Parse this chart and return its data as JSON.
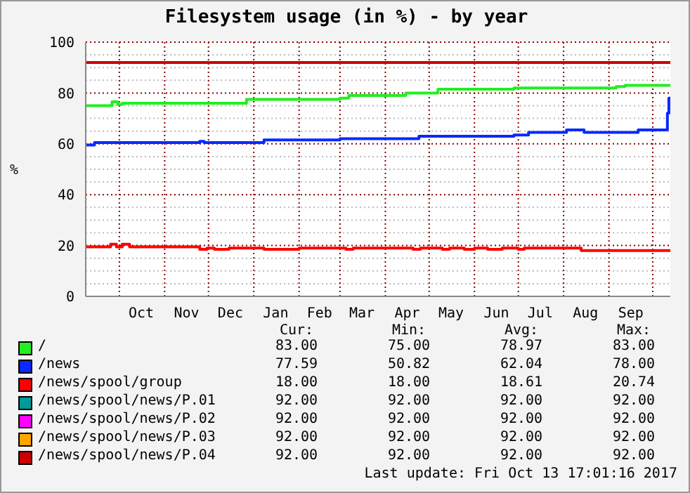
{
  "chart_data": {
    "type": "step",
    "title": "Filesystem usage (in %) - by year",
    "ylabel": "%",
    "x": [
      "2016-09-08",
      "2017-10-13"
    ],
    "xlim": [
      "2016-09-08",
      "2017-10-13"
    ],
    "xticks": [
      {
        "value": "2016-10-01",
        "label": null
      },
      {
        "value": "2016-10-16",
        "label": "Oct"
      },
      {
        "value": "2016-11-01",
        "label": null
      },
      {
        "value": "2016-11-16",
        "label": "Nov"
      },
      {
        "value": "2016-12-01",
        "label": null
      },
      {
        "value": "2016-12-16",
        "label": "Dec"
      },
      {
        "value": "2017-01-01",
        "label": null
      },
      {
        "value": "2017-01-16",
        "label": "Jan"
      },
      {
        "value": "2017-02-01",
        "label": null
      },
      {
        "value": "2017-02-15",
        "label": "Feb"
      },
      {
        "value": "2017-03-01",
        "label": null
      },
      {
        "value": "2017-03-16",
        "label": "Mar"
      },
      {
        "value": "2017-04-01",
        "label": null
      },
      {
        "value": "2017-04-16",
        "label": "Apr"
      },
      {
        "value": "2017-05-01",
        "label": null
      },
      {
        "value": "2017-05-16",
        "label": "May"
      },
      {
        "value": "2017-06-01",
        "label": null
      },
      {
        "value": "2017-06-16",
        "label": "Jun"
      },
      {
        "value": "2017-07-01",
        "label": null
      },
      {
        "value": "2017-07-16",
        "label": "Jul"
      },
      {
        "value": "2017-08-01",
        "label": null
      },
      {
        "value": "2017-08-16",
        "label": "Aug"
      },
      {
        "value": "2017-09-01",
        "label": null
      },
      {
        "value": "2017-09-16",
        "label": "Sep"
      },
      {
        "value": "2017-10-01",
        "label": null
      }
    ],
    "ylim": [
      0,
      100
    ],
    "yticks": [
      0,
      {
        "value": 5,
        "label": null
      },
      {
        "value": 10,
        "label": null
      },
      {
        "value": 15,
        "label": null
      },
      20,
      {
        "value": 25,
        "label": null
      },
      {
        "value": 30,
        "label": null
      },
      {
        "value": 35,
        "label": null
      },
      40,
      {
        "value": 45,
        "label": null
      },
      {
        "value": 50,
        "label": null
      },
      {
        "value": 55,
        "label": null
      },
      60,
      {
        "value": 65,
        "label": null
      },
      {
        "value": 70,
        "label": null
      },
      {
        "value": 75,
        "label": null
      },
      80,
      {
        "value": 85,
        "label": null
      },
      {
        "value": 90,
        "label": null
      },
      {
        "value": 95,
        "label": null
      },
      100
    ],
    "grid": true,
    "legend": "bottom",
    "series": [
      {
        "name": "/",
        "color": "#22ee22",
        "x": [
          "2016-09-08",
          "2016-09-26",
          "2016-09-30",
          "2016-10-03",
          "2016-12-27",
          "2017-03-01",
          "2017-03-07",
          "2017-04-15",
          "2017-05-07",
          "2017-06-28",
          "2017-09-06",
          "2017-09-12",
          "2017-10-13"
        ],
        "values": [
          75,
          76.5,
          75.5,
          76,
          77.5,
          78,
          79,
          80,
          81.5,
          82,
          82.5,
          83,
          83
        ]
      },
      {
        "name": "/news",
        "color": "#0a28ff",
        "x": [
          "2016-09-08",
          "2016-09-14",
          "2016-11-25",
          "2016-11-28",
          "2017-01-08",
          "2017-03-01",
          "2017-04-24",
          "2017-06-28",
          "2017-07-08",
          "2017-08-03",
          "2017-08-15",
          "2017-09-21",
          "2017-10-10",
          "2017-10-11",
          "2017-10-12",
          "2017-10-13"
        ],
        "values": [
          59.5,
          60.5,
          61,
          60.5,
          61.5,
          62,
          63,
          63.5,
          64.5,
          65.5,
          64.5,
          65.5,
          65.5,
          72,
          78,
          77.59
        ]
      },
      {
        "name": "/news/spool/group",
        "color": "#ff0000",
        "x": [
          "2016-09-08",
          "2016-09-25",
          "2016-09-29",
          "2016-10-03",
          "2016-10-08",
          "2016-11-25",
          "2016-11-30",
          "2016-12-05",
          "2016-12-15",
          "2017-01-08",
          "2017-02-01",
          "2017-03-05",
          "2017-03-10",
          "2017-04-20",
          "2017-04-25",
          "2017-05-10",
          "2017-05-15",
          "2017-05-25",
          "2017-06-01",
          "2017-06-10",
          "2017-06-20",
          "2017-07-01",
          "2017-07-05",
          "2017-08-13",
          "2017-09-15",
          "2017-10-13"
        ],
        "values": [
          19.5,
          20.5,
          19.5,
          20.5,
          19.5,
          18.5,
          19,
          18.5,
          19,
          18.5,
          19,
          18.5,
          19,
          18.5,
          19,
          18.5,
          19,
          18.5,
          19,
          18.5,
          19,
          18.5,
          19,
          18,
          18,
          18
        ]
      },
      {
        "name": "/news/spool/news/P.01",
        "color": "#009999",
        "values": [
          null,
          null
        ]
      },
      {
        "name": "/news/spool/news/P.02",
        "color": "#ff00ff",
        "values": [
          null,
          null
        ]
      },
      {
        "name": "/news/spool/news/P.03",
        "color": "#ffa500",
        "values": [
          null,
          null
        ]
      },
      {
        "name": "/news/spool/news/P.04",
        "color": "#cc0000",
        "values": [
          92,
          92
        ]
      }
    ],
    "annotations": [
      "Cur:",
      "Min:",
      "Avg:",
      "Max:",
      "83.00",
      "75.00",
      "78.97",
      "83.00",
      "77.59",
      "50.82",
      "62.04",
      "78.00",
      "18.00",
      "18.00",
      "18.61",
      "20.74",
      "92.00",
      "92.00",
      "92.00",
      "92.00",
      "92.00",
      "92.00",
      "92.00",
      "92.00",
      "92.00",
      "92.00",
      "92.00",
      "92.00",
      "92.00",
      "92.00",
      "92.00",
      "92.00",
      "Last update: Fri Oct 13 17:01:16 2017"
    ]
  }
}
